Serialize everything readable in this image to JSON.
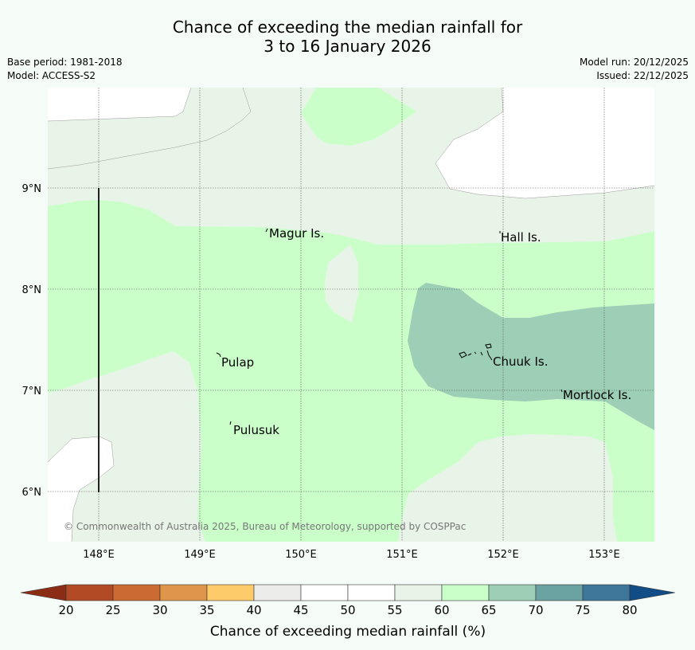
{
  "header": {
    "title_line1": "Chance of exceeding the median rainfall for",
    "title_line2": "3 to 16 January 2026",
    "base_period": "Base period: 1981-2018",
    "model": "Model: ACCESS-S2",
    "model_run": "Model run: 20/12/2025",
    "issued": "Issued: 22/12/2025"
  },
  "map": {
    "lat_labels": [
      "9°N",
      "8°N",
      "7°N",
      "6°N"
    ],
    "lon_labels": [
      "148°E",
      "149°E",
      "150°E",
      "151°E",
      "152°E",
      "153°E"
    ],
    "places": {
      "magur": "Magur Is.",
      "hall": "Hall Is.",
      "pulap": "Pulap",
      "chuuk": "Chuuk Is.",
      "mortlock": "Mortlock Is.",
      "pulusuk": "Pulusuk"
    },
    "copyright": "© Commonwealth of Australia 2025, Bureau of Meteorology, supported by COSPPac"
  },
  "colorbar": {
    "title": "Chance of exceeding median rainfall (%)",
    "ticks": [
      "20",
      "25",
      "30",
      "35",
      "40",
      "45",
      "50",
      "55",
      "60",
      "65",
      "70",
      "75",
      "80"
    ],
    "colors": [
      "#8b2d14",
      "#b24b25",
      "#cc6a33",
      "#e0964a",
      "#fdcb6a",
      "#ececea",
      "#ffffff",
      "#ffffff",
      "#e9f4e9",
      "#caffca",
      "#9ccfb6",
      "#6ba3a3",
      "#3e7699",
      "#114c86"
    ]
  }
}
